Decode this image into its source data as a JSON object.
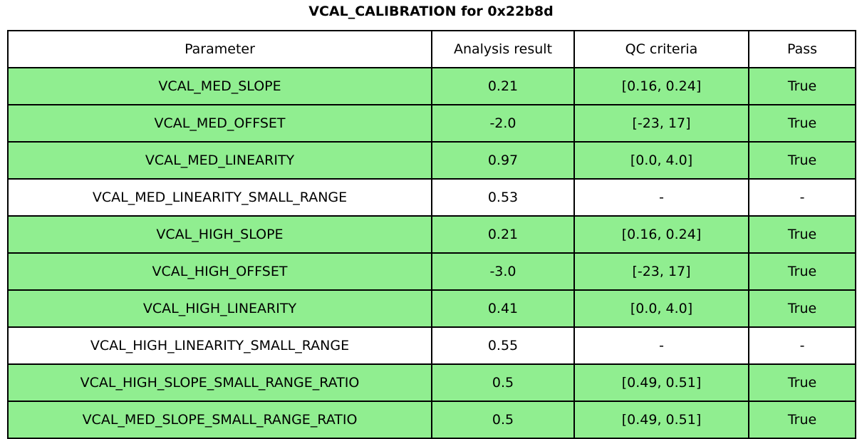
{
  "chart_data": {
    "type": "table",
    "title": "VCAL_CALIBRATION for 0x22b8d",
    "columns": [
      "Parameter",
      "Analysis result",
      "QC criteria",
      "Pass"
    ],
    "rows": [
      {
        "parameter": "VCAL_MED_SLOPE",
        "result": "0.21",
        "criteria": "[0.16, 0.24]",
        "pass": "True",
        "highlighted": true
      },
      {
        "parameter": "VCAL_MED_OFFSET",
        "result": "-2.0",
        "criteria": "[-23, 17]",
        "pass": "True",
        "highlighted": true
      },
      {
        "parameter": "VCAL_MED_LINEARITY",
        "result": "0.97",
        "criteria": "[0.0, 4.0]",
        "pass": "True",
        "highlighted": true
      },
      {
        "parameter": "VCAL_MED_LINEARITY_SMALL_RANGE",
        "result": "0.53",
        "criteria": "-",
        "pass": "-",
        "highlighted": false
      },
      {
        "parameter": "VCAL_HIGH_SLOPE",
        "result": "0.21",
        "criteria": "[0.16, 0.24]",
        "pass": "True",
        "highlighted": true
      },
      {
        "parameter": "VCAL_HIGH_OFFSET",
        "result": "-3.0",
        "criteria": "[-23, 17]",
        "pass": "True",
        "highlighted": true
      },
      {
        "parameter": "VCAL_HIGH_LINEARITY",
        "result": "0.41",
        "criteria": "[0.0, 4.0]",
        "pass": "True",
        "highlighted": true
      },
      {
        "parameter": "VCAL_HIGH_LINEARITY_SMALL_RANGE",
        "result": "0.55",
        "criteria": "-",
        "pass": "-",
        "highlighted": false
      },
      {
        "parameter": "VCAL_HIGH_SLOPE_SMALL_RANGE_RATIO",
        "result": "0.5",
        "criteria": "[0.49, 0.51]",
        "pass": "True",
        "highlighted": true
      },
      {
        "parameter": "VCAL_MED_SLOPE_SMALL_RANGE_RATIO",
        "result": "0.5",
        "criteria": "[0.49, 0.51]",
        "pass": "True",
        "highlighted": true
      }
    ],
    "colors": {
      "highlight": "#90ee90",
      "plain": "#ffffff",
      "border": "#000000",
      "text": "#000000"
    },
    "layout_hints": {
      "grid": "on",
      "legend": "none"
    }
  }
}
